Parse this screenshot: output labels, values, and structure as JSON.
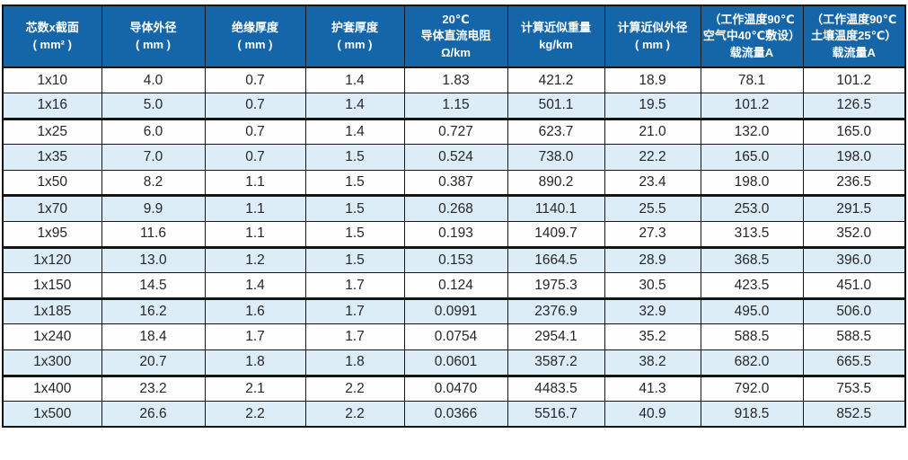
{
  "colors": {
    "header_bg": "#1565a9",
    "header_text": "#ffffff",
    "row_stripe": "#dcedf8",
    "row_plain": "#fefefe",
    "border": "#141414",
    "body_text": "#262626",
    "page_bg": "#ffffff"
  },
  "table": {
    "columns": [
      {
        "id": "cores-x-section",
        "lines": [
          "芯数x截面",
          "( mm² )"
        ]
      },
      {
        "id": "conductor-od",
        "lines": [
          "导体外径",
          "( mm )"
        ]
      },
      {
        "id": "insulation-thickness",
        "lines": [
          "绝缘厚度",
          "( mm )"
        ]
      },
      {
        "id": "sheath-thickness",
        "lines": [
          "护套厚度",
          "( mm )"
        ]
      },
      {
        "id": "dc-resistance",
        "lines": [
          "20℃",
          "导体直流电阻",
          "Ω/km"
        ]
      },
      {
        "id": "approx-weight",
        "lines": [
          "计算近似重量",
          "kg/km"
        ]
      },
      {
        "id": "approx-od",
        "lines": [
          "计算近似外径",
          "( mm )"
        ]
      },
      {
        "id": "ampacity-air",
        "lines": [
          "（工作温度90℃",
          "空气中40℃敷设）",
          "载流量A"
        ]
      },
      {
        "id": "ampacity-soil",
        "lines": [
          "（工作温度90℃",
          "土壤温度25℃）",
          "载流量A"
        ]
      }
    ],
    "rows": [
      [
        "1x10",
        "4.0",
        "0.7",
        "1.4",
        "1.83",
        "421.2",
        "18.9",
        "78.1",
        "101.2"
      ],
      [
        "1x16",
        "5.0",
        "0.7",
        "1.4",
        "1.15",
        "501.1",
        "19.5",
        "101.2",
        "126.5"
      ],
      [
        "1x25",
        "6.0",
        "0.7",
        "1.4",
        "0.727",
        "623.7",
        "21.0",
        "132.0",
        "165.0"
      ],
      [
        "1x35",
        "7.0",
        "0.7",
        "1.5",
        "0.524",
        "738.0",
        "22.2",
        "165.0",
        "198.0"
      ],
      [
        "1x50",
        "8.2",
        "1.1",
        "1.5",
        "0.387",
        "890.2",
        "23.4",
        "198.0",
        "236.5"
      ],
      [
        "1x70",
        "9.9",
        "1.1",
        "1.5",
        "0.268",
        "1140.1",
        "25.5",
        "253.0",
        "291.5"
      ],
      [
        "1x95",
        "11.6",
        "1.1",
        "1.5",
        "0.193",
        "1409.7",
        "27.3",
        "313.5",
        "352.0"
      ],
      [
        "1x120",
        "13.0",
        "1.2",
        "1.5",
        "0.153",
        "1664.5",
        "28.9",
        "368.5",
        "396.0"
      ],
      [
        "1x150",
        "14.5",
        "1.4",
        "1.7",
        "0.124",
        "1975.3",
        "30.5",
        "423.5",
        "451.0"
      ],
      [
        "1x185",
        "16.2",
        "1.6",
        "1.7",
        "0.0991",
        "2376.9",
        "32.9",
        "495.0",
        "506.0"
      ],
      [
        "1x240",
        "18.4",
        "1.7",
        "1.7",
        "0.0754",
        "2954.1",
        "35.2",
        "588.5",
        "588.5"
      ],
      [
        "1x300",
        "20.7",
        "1.8",
        "1.8",
        "0.0601",
        "3587.2",
        "38.2",
        "682.0",
        "665.5"
      ],
      [
        "1x400",
        "23.2",
        "2.1",
        "2.2",
        "0.0470",
        "4483.5",
        "41.3",
        "792.0",
        "753.5"
      ],
      [
        "1x500",
        "26.6",
        "2.2",
        "2.2",
        "0.0366",
        "5516.7",
        "40.9",
        "918.5",
        "852.5"
      ]
    ],
    "group_end_rows": [
      2,
      5,
      7,
      9,
      12
    ]
  }
}
